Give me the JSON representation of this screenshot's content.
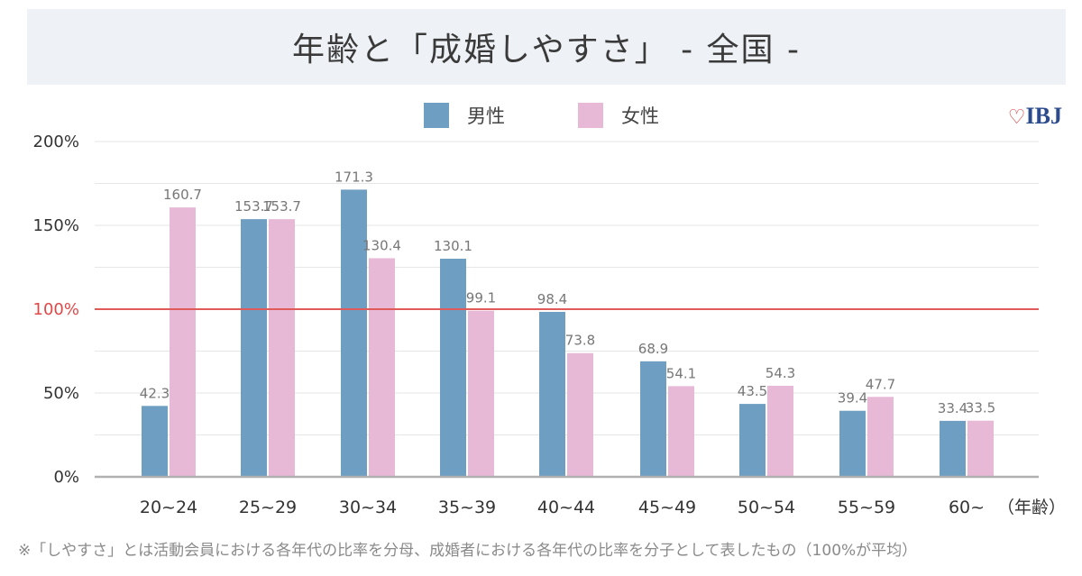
{
  "title": "年齢と「成婚しやすさ」 - 全国 -",
  "logo": {
    "heart": "♡",
    "text": "IBJ"
  },
  "footnote": "※「しやすさ」とは活動会員における各年代の比率を分母、成婚者における各年代の比率を分子として表したもの（100%が平均）",
  "colors": {
    "male": "#6e9ec2",
    "female": "#e8b9d6",
    "reference": "#e05a5a",
    "grid": "#e6e6e6",
    "axis": "#b0b0b0"
  },
  "chart_data": {
    "type": "bar",
    "title": "年齢と「成婚しやすさ」 - 全国 -",
    "xlabel": "（年齢）",
    "ylabel": "",
    "ylim": [
      0,
      200
    ],
    "yticks": [
      {
        "value": 0,
        "label": "0%"
      },
      {
        "value": 50,
        "label": "50%"
      },
      {
        "value": 100,
        "label": "100%"
      },
      {
        "value": 150,
        "label": "150%"
      },
      {
        "value": 200,
        "label": "200%"
      }
    ],
    "reference_line": {
      "value": 100,
      "label": "100%"
    },
    "grid": true,
    "legend_position": "top-center",
    "categories": [
      "20~24",
      "25~29",
      "30~34",
      "35~39",
      "40~44",
      "45~49",
      "50~54",
      "55~59",
      "60~"
    ],
    "series": [
      {
        "name": "男性",
        "color": "#6e9ec2",
        "values": [
          42.3,
          153.7,
          171.3,
          130.1,
          98.4,
          68.9,
          43.5,
          39.4,
          33.4
        ]
      },
      {
        "name": "女性",
        "color": "#e8b9d6",
        "values": [
          160.7,
          153.7,
          130.4,
          99.1,
          73.8,
          54.1,
          54.3,
          47.7,
          33.5
        ]
      }
    ]
  }
}
